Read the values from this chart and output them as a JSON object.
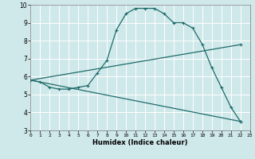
{
  "xlabel": "Humidex (Indice chaleur)",
  "xlim": [
    0,
    23
  ],
  "ylim": [
    3,
    10
  ],
  "xticks": [
    0,
    1,
    2,
    3,
    4,
    5,
    6,
    7,
    8,
    9,
    10,
    11,
    12,
    13,
    14,
    15,
    16,
    17,
    18,
    19,
    20,
    21,
    22,
    23
  ],
  "yticks": [
    3,
    4,
    5,
    6,
    7,
    8,
    9,
    10
  ],
  "bg_color": "#cfe8ea",
  "line_color": "#1e6b6b",
  "grid_color": "#ffffff",
  "line1_x": [
    0,
    1,
    2,
    3,
    4,
    5,
    6,
    7,
    8,
    9,
    10,
    11,
    12,
    13,
    14,
    15,
    16,
    17,
    18,
    19,
    20,
    21,
    22
  ],
  "line1_y": [
    5.8,
    5.7,
    5.4,
    5.3,
    5.3,
    5.4,
    5.5,
    6.2,
    6.9,
    8.6,
    9.5,
    9.8,
    9.8,
    9.8,
    9.5,
    9.0,
    9.0,
    8.7,
    7.8,
    6.5,
    5.4,
    4.3,
    3.5
  ],
  "line2_x": [
    0,
    22
  ],
  "line2_y": [
    5.8,
    3.5
  ],
  "line3_x": [
    0,
    22
  ],
  "line3_y": [
    5.8,
    7.78
  ]
}
